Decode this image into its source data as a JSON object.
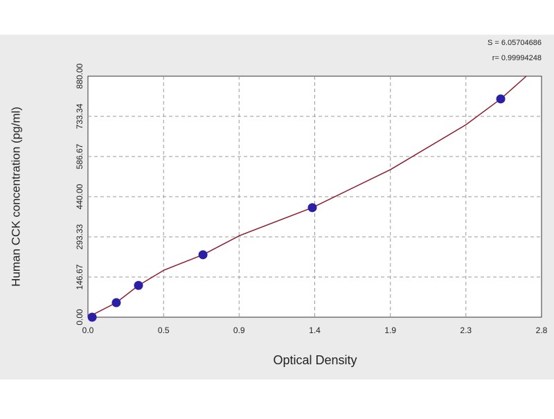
{
  "chart_data": {
    "type": "scatter",
    "xlabel": "Optical Density",
    "ylabel": "Human  CCK concentration (pg/ml)",
    "annotations": [
      "S = 6.05704686",
      "r= 0.99994248"
    ],
    "points": {
      "color": "#2b1fa6",
      "x": [
        0.026,
        0.175,
        0.312,
        0.71,
        1.385,
        2.548
      ],
      "values": [
        0,
        53,
        116,
        228,
        400,
        797
      ]
    },
    "fit": {
      "color": "#8b1c2e",
      "x": [
        0,
        0.175,
        0.312,
        0.47,
        0.71,
        0.936,
        1.385,
        1.868,
        2.334,
        2.548,
        2.706
      ],
      "values": [
        0,
        53,
        116,
        172,
        228,
        298,
        400,
        539,
        703,
        797,
        880
      ]
    },
    "xlim": [
      0,
      2.8
    ],
    "xticks": [
      {
        "value": 0,
        "label": "0.0"
      },
      {
        "value": 0.467,
        "label": "0.5"
      },
      {
        "value": 0.933,
        "label": "0.9"
      },
      1.4,
      {
        "value": 1.867,
        "label": "1.9"
      },
      {
        "value": 2.333,
        "label": "2.3"
      },
      2.8
    ],
    "ylim": [
      0,
      880
    ],
    "yticks": [
      {
        "value": 0,
        "label": "0.00"
      },
      146.67,
      293.33,
      {
        "value": 440,
        "label": "440.00"
      },
      586.67,
      733.34,
      {
        "value": 880,
        "label": "880.00"
      }
    ],
    "grid": true
  }
}
